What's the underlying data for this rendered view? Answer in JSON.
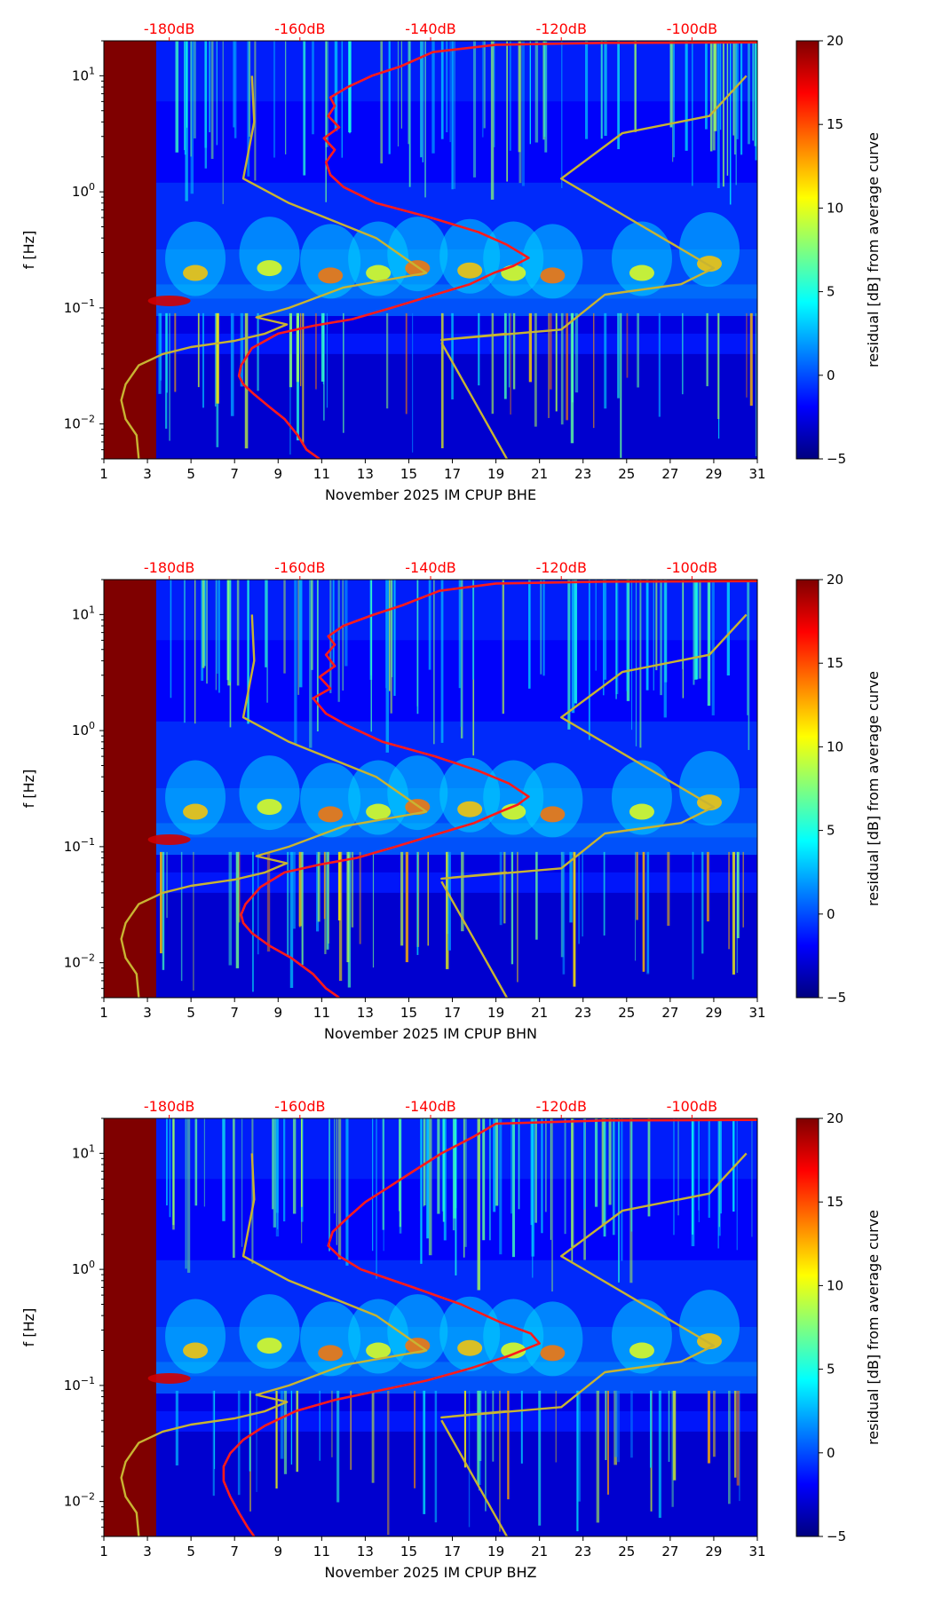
{
  "figure": {
    "colorbar_label": "residual [dB] from average curve",
    "colorbar_ticks": [
      "20",
      "15",
      "10",
      "5",
      "0",
      "−5"
    ],
    "colorbar_range": [
      -5,
      20
    ],
    "colormap": [
      "#00007f",
      "#0000ff",
      "#007fff",
      "#00ffff",
      "#7fff7f",
      "#ffff00",
      "#ff7f00",
      "#ff0000",
      "#7f0000"
    ]
  },
  "chart_data": [
    {
      "type": "heatmap",
      "title": "",
      "xlabel": "November 2025 IM CPUP  BHE",
      "ylabel": "f [Hz]",
      "x_ticks": [
        "1",
        "3",
        "5",
        "7",
        "9",
        "11",
        "13",
        "15",
        "17",
        "19",
        "21",
        "23",
        "25",
        "27",
        "29",
        "31"
      ],
      "xlim": [
        1,
        31
      ],
      "y_ticks": [
        {
          "base": "10",
          "exp": "1"
        },
        {
          "base": "10",
          "exp": "0"
        },
        {
          "base": "10",
          "exp": "−1"
        },
        {
          "base": "10",
          "exp": "−2"
        }
      ],
      "ylim": [
        0.005,
        20
      ],
      "top_axis_labels": [
        "-180dB",
        "-160dB",
        "-140dB",
        "-120dB",
        "-100dB"
      ],
      "top_axis_color": "#ff0000",
      "series": [
        {
          "name": "average curve",
          "color": "#ff1a1a",
          "x": [
            10.9,
            10.3,
            9.9,
            9.3,
            8.6,
            7.9,
            7.4,
            7.2,
            7.3,
            7.8,
            9.0,
            10.6,
            12.4,
            14.2,
            16.2,
            17.8,
            18.9,
            19.8,
            20.5,
            19.5,
            18.2,
            16.0,
            13.5,
            12.0,
            11.4,
            11.2,
            11.6,
            11.1,
            11.8,
            11.3,
            11.6,
            11.4,
            12.2,
            13.3,
            14.6,
            16.1,
            19.0,
            24.0,
            31.0
          ],
          "y": [
            0.005,
            0.006,
            0.008,
            0.011,
            0.014,
            0.018,
            0.022,
            0.026,
            0.032,
            0.045,
            0.06,
            0.07,
            0.08,
            0.1,
            0.13,
            0.16,
            0.2,
            0.23,
            0.27,
            0.35,
            0.45,
            0.6,
            0.8,
            1.1,
            1.4,
            1.8,
            2.3,
            2.9,
            3.6,
            4.5,
            5.5,
            6.5,
            8.0,
            10.0,
            12.0,
            16.0,
            18.5,
            19.2,
            19.4
          ]
        },
        {
          "name": "noise model",
          "color": "#c8b432",
          "x": [
            2.6,
            2.5,
            2.0,
            1.8,
            2.0,
            2.6,
            3.7,
            5.0,
            7.0,
            8.4,
            9.4,
            8.0,
            9.5,
            12.0,
            15.8,
            13.5,
            9.5,
            7.4,
            7.9,
            7.8,
            null,
            16.5,
            19.5,
            null,
            19.5,
            16.5,
            22.0,
            24.0,
            27.5,
            29.0,
            22.0,
            24.8,
            28.8,
            30.5
          ],
          "y": [
            0.005,
            0.008,
            0.011,
            0.016,
            0.022,
            0.032,
            0.04,
            0.046,
            0.052,
            0.06,
            0.072,
            0.083,
            0.1,
            0.15,
            0.2,
            0.4,
            0.8,
            1.3,
            4.0,
            10.0,
            null,
            0.05,
            0.005,
            null,
            0.06,
            0.053,
            0.065,
            0.13,
            0.16,
            0.22,
            1.3,
            3.2,
            4.5,
            10.0
          ]
        }
      ]
    },
    {
      "type": "heatmap",
      "title": "",
      "xlabel": "November 2025 IM CPUP  BHN",
      "ylabel": "f [Hz]",
      "x_ticks": [
        "1",
        "3",
        "5",
        "7",
        "9",
        "11",
        "13",
        "15",
        "17",
        "19",
        "21",
        "23",
        "25",
        "27",
        "29",
        "31"
      ],
      "xlim": [
        1,
        31
      ],
      "y_ticks": [
        {
          "base": "10",
          "exp": "1"
        },
        {
          "base": "10",
          "exp": "0"
        },
        {
          "base": "10",
          "exp": "−1"
        },
        {
          "base": "10",
          "exp": "−2"
        }
      ],
      "ylim": [
        0.005,
        20
      ],
      "top_axis_labels": [
        "-180dB",
        "-160dB",
        "-140dB",
        "-120dB",
        "-100dB"
      ],
      "top_axis_color": "#ff0000",
      "series": [
        {
          "name": "average curve",
          "color": "#ff1a1a",
          "x": [
            11.8,
            11.2,
            10.6,
            9.6,
            8.6,
            7.8,
            7.4,
            7.3,
            7.5,
            8.2,
            9.3,
            10.9,
            12.6,
            14.4,
            16.4,
            18.0,
            19.2,
            20.0,
            20.5,
            19.6,
            18.2,
            16.2,
            13.8,
            12.2,
            11.2,
            10.6,
            11.4,
            10.9,
            11.6,
            11.2,
            11.6,
            11.3,
            12.0,
            13.4,
            14.7,
            16.4,
            19.0,
            24.0,
            31.0
          ],
          "y": [
            0.005,
            0.006,
            0.008,
            0.011,
            0.014,
            0.018,
            0.022,
            0.026,
            0.032,
            0.045,
            0.06,
            0.07,
            0.08,
            0.1,
            0.13,
            0.16,
            0.2,
            0.23,
            0.27,
            0.35,
            0.45,
            0.6,
            0.8,
            1.1,
            1.4,
            1.9,
            2.3,
            2.9,
            3.6,
            4.5,
            5.5,
            6.5,
            8.0,
            10.0,
            12.0,
            16.0,
            18.5,
            19.2,
            19.4
          ]
        },
        {
          "name": "noise model",
          "color": "#c8b432",
          "x": [
            2.6,
            2.5,
            2.0,
            1.8,
            2.0,
            2.6,
            3.7,
            5.0,
            7.0,
            8.4,
            9.4,
            8.0,
            9.5,
            12.0,
            15.8,
            13.5,
            9.5,
            7.4,
            7.9,
            7.8,
            null,
            16.5,
            19.5,
            null,
            19.5,
            16.5,
            22.0,
            24.0,
            27.5,
            29.0,
            22.0,
            24.8,
            28.8,
            30.5
          ],
          "y": [
            0.005,
            0.008,
            0.011,
            0.016,
            0.022,
            0.032,
            0.04,
            0.046,
            0.052,
            0.06,
            0.072,
            0.083,
            0.1,
            0.15,
            0.2,
            0.4,
            0.8,
            1.3,
            4.0,
            10.0,
            null,
            0.05,
            0.005,
            null,
            0.06,
            0.053,
            0.065,
            0.13,
            0.16,
            0.22,
            1.3,
            3.2,
            4.5,
            10.0
          ]
        }
      ]
    },
    {
      "type": "heatmap",
      "title": "",
      "xlabel": "November 2025 IM CPUP  BHZ",
      "ylabel": "f [Hz]",
      "x_ticks": [
        "1",
        "3",
        "5",
        "7",
        "9",
        "11",
        "13",
        "15",
        "17",
        "19",
        "21",
        "23",
        "25",
        "27",
        "29",
        "31"
      ],
      "xlim": [
        1,
        31
      ],
      "y_ticks": [
        {
          "base": "10",
          "exp": "1"
        },
        {
          "base": "10",
          "exp": "0"
        },
        {
          "base": "10",
          "exp": "−1"
        },
        {
          "base": "10",
          "exp": "−2"
        }
      ],
      "ylim": [
        0.005,
        20
      ],
      "top_axis_labels": [
        "-180dB",
        "-160dB",
        "-140dB",
        "-120dB",
        "-100dB"
      ],
      "top_axis_color": "#ff0000",
      "series": [
        {
          "name": "average curve",
          "color": "#ff1a1a",
          "x": [
            7.9,
            7.6,
            7.2,
            6.8,
            6.5,
            6.5,
            6.8,
            7.4,
            8.4,
            9.8,
            11.6,
            13.6,
            15.8,
            17.8,
            19.6,
            21.0,
            20.6,
            19.2,
            17.4,
            15.2,
            12.8,
            11.8,
            11.3,
            11.5,
            12.2,
            13.0,
            14.0,
            15.2,
            16.5,
            18.0,
            19.0,
            24.0,
            31.0
          ],
          "y": [
            0.005,
            0.006,
            0.008,
            0.011,
            0.015,
            0.02,
            0.026,
            0.034,
            0.045,
            0.06,
            0.075,
            0.09,
            0.11,
            0.14,
            0.18,
            0.23,
            0.28,
            0.35,
            0.5,
            0.7,
            1.0,
            1.3,
            1.6,
            2.1,
            2.8,
            3.8,
            5.0,
            7.0,
            10.0,
            14.0,
            18.0,
            19.2,
            19.4
          ]
        },
        {
          "name": "noise model",
          "color": "#c8b432",
          "x": [
            2.6,
            2.5,
            2.0,
            1.8,
            2.0,
            2.6,
            3.7,
            5.0,
            7.0,
            8.4,
            9.4,
            8.0,
            9.5,
            12.0,
            15.8,
            13.5,
            9.5,
            7.4,
            7.9,
            7.8,
            null,
            16.5,
            19.5,
            null,
            19.5,
            16.5,
            22.0,
            24.0,
            27.5,
            29.0,
            22.0,
            24.8,
            28.8,
            30.5
          ],
          "y": [
            0.005,
            0.008,
            0.011,
            0.016,
            0.022,
            0.032,
            0.04,
            0.046,
            0.052,
            0.06,
            0.072,
            0.083,
            0.1,
            0.15,
            0.2,
            0.4,
            0.8,
            1.3,
            4.0,
            10.0,
            null,
            0.05,
            0.005,
            null,
            0.06,
            0.053,
            0.065,
            0.13,
            0.16,
            0.22,
            1.3,
            3.2,
            4.5,
            10.0
          ]
        }
      ]
    }
  ]
}
